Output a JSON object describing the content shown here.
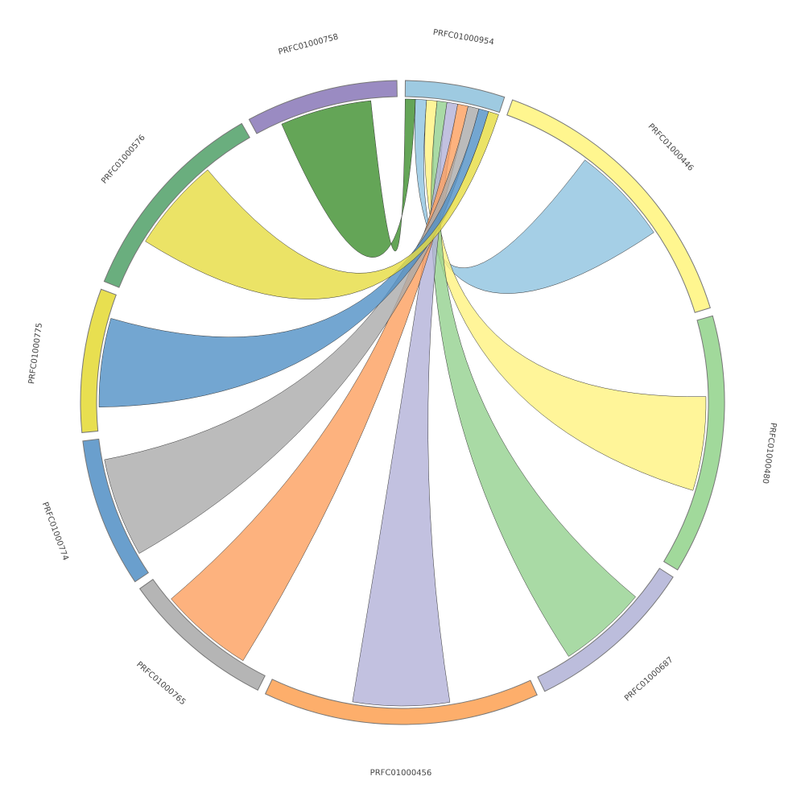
{
  "chart_data": {
    "type": "chord",
    "nodes": [
      {
        "name": "PRFC01000954",
        "value": 18,
        "color": "#9ecae1"
      },
      {
        "name": "PRFC01000446",
        "value": 53,
        "color": "#fff68f"
      },
      {
        "name": "PRFC01000480",
        "value": 47,
        "color": "#a1d99b"
      },
      {
        "name": "PRFC01000687",
        "value": 31,
        "color": "#bcbddc"
      },
      {
        "name": "PRFC01000456",
        "value": 50,
        "color": "#fdae6b"
      },
      {
        "name": "PRFC01000765",
        "value": 28,
        "color": "#b5b5b5"
      },
      {
        "name": "PRFC01000774",
        "value": 27,
        "color": "#6a9fcd"
      },
      {
        "name": "PRFC01000775",
        "value": 26,
        "color": "#e8df50"
      },
      {
        "name": "PRFC01000576",
        "value": 38,
        "color": "#6aae7e"
      },
      {
        "name": "PRFC01000758",
        "value": 27.5,
        "color": "#9a8bc2"
      }
    ],
    "links": [
      {
        "source": 9,
        "target": 0,
        "value": 17.5,
        "color": "#3d8f2d"
      },
      {
        "source": 1,
        "target": 0,
        "value": 19,
        "color": "#8fc3e0"
      },
      {
        "source": 2,
        "target": 0,
        "value": 18,
        "color": "#fff280"
      },
      {
        "source": 3,
        "target": 0,
        "value": 17,
        "color": "#93d18f"
      },
      {
        "source": 4,
        "target": 0,
        "value": 18.5,
        "color": "#b3b1d8"
      },
      {
        "source": 5,
        "target": 0,
        "value": 18,
        "color": "#fd9f5e"
      },
      {
        "source": 6,
        "target": 0,
        "value": 19,
        "color": "#aaaaaa"
      },
      {
        "source": 7,
        "target": 0,
        "value": 17,
        "color": "#5090c6"
      },
      {
        "source": 8,
        "target": 0,
        "value": 18,
        "color": "#e6dc40"
      }
    ]
  }
}
